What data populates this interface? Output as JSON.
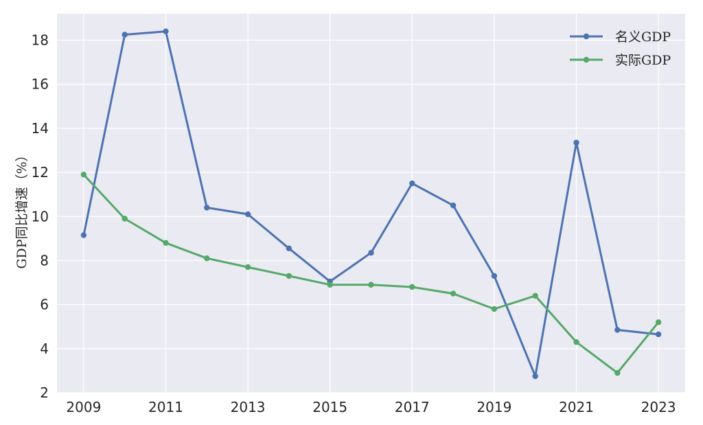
{
  "chart_data": {
    "type": "line",
    "title": "",
    "xlabel": "",
    "ylabel": "GDP同比增速（%）",
    "x": [
      2009,
      2010,
      2011,
      2012,
      2013,
      2014,
      2015,
      2016,
      2017,
      2018,
      2019,
      2020,
      2021,
      2022,
      2023
    ],
    "xticks": [
      "2009",
      "2011",
      "2013",
      "2015",
      "2017",
      "2019",
      "2021",
      "2023"
    ],
    "xlim": [
      2008.35,
      2023.65
    ],
    "yticks": [
      "2",
      "4",
      "6",
      "8",
      "10",
      "12",
      "14",
      "16",
      "18"
    ],
    "ylim": [
      2,
      19.2
    ],
    "grid": true,
    "legend_position": "top-right",
    "series": [
      {
        "name": "名义GDP",
        "color": "#4c72b0",
        "values": [
          9.15,
          18.25,
          18.4,
          10.4,
          10.1,
          8.55,
          7.05,
          8.35,
          11.5,
          10.5,
          7.3,
          2.75,
          13.35,
          4.85,
          4.65
        ]
      },
      {
        "name": "实际GDP",
        "color": "#55a868",
        "values": [
          11.9,
          9.9,
          8.8,
          8.1,
          7.7,
          7.3,
          6.9,
          6.9,
          6.8,
          6.5,
          5.8,
          6.4,
          4.3,
          2.9,
          5.2
        ]
      }
    ],
    "plot_background": "#eaeaf2"
  }
}
